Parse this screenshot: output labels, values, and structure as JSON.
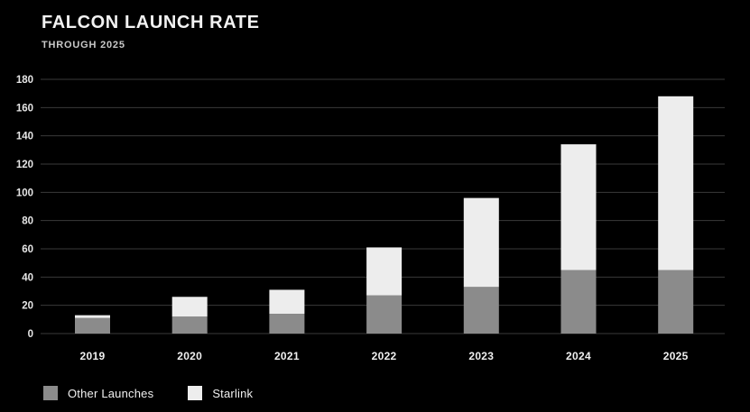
{
  "header": {
    "title": "FALCON LAUNCH RATE",
    "subtitle": "THROUGH 2025"
  },
  "chart_data": {
    "type": "bar",
    "stacked": true,
    "title": "FALCON LAUNCH RATE",
    "subtitle": "THROUGH 2025",
    "xlabel": "",
    "ylabel": "",
    "categories": [
      "2019",
      "2020",
      "2021",
      "2022",
      "2023",
      "2024",
      "2025"
    ],
    "series": [
      {
        "name": "Other Launches",
        "color": "#8b8b8b",
        "values": [
          11,
          12,
          14,
          27,
          33,
          45,
          45
        ]
      },
      {
        "name": "Starlink",
        "color": "#ededed",
        "values": [
          2,
          14,
          17,
          34,
          63,
          89,
          123
        ]
      }
    ],
    "stack_totals": [
      13,
      26,
      31,
      61,
      96,
      134,
      168
    ],
    "ylim": [
      0,
      180
    ],
    "ytick_step": 20,
    "yticks": [
      "0",
      "20",
      "40",
      "60",
      "80",
      "100",
      "120",
      "140",
      "160",
      "180"
    ],
    "grid": true,
    "legend_position": "bottom-left"
  },
  "legend": {
    "items": [
      {
        "label": "Other Launches",
        "color": "#8b8b8b"
      },
      {
        "label": "Starlink",
        "color": "#ededed"
      }
    ]
  },
  "colors": {
    "background": "#000000",
    "gridline": "#3a3a3a",
    "axis_text": "#e6e6e6",
    "title_text": "#f2f2f2",
    "subtitle_text": "#c9c9c9"
  }
}
